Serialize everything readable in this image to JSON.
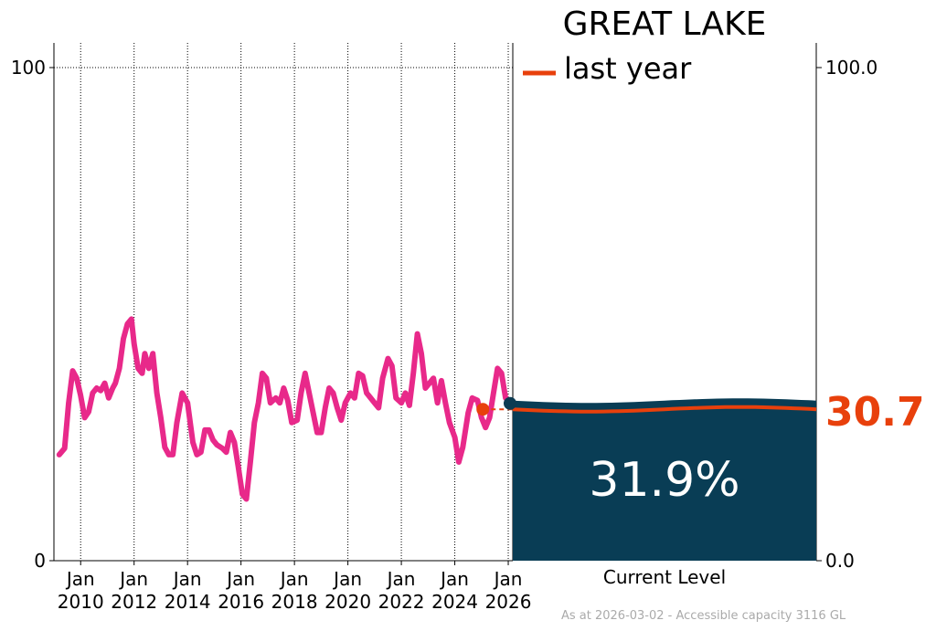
{
  "title": "GREAT LAKE",
  "legend": {
    "label": "last year",
    "color": "#e8400c"
  },
  "current": {
    "percent_label": "31.9%",
    "value": 31.9,
    "caption": "Current Level",
    "fill_color": "#093d55"
  },
  "last_year": {
    "value": 30.7,
    "value_label": "30.7",
    "color": "#e8400c"
  },
  "footer": "As at 2026-03-02 - Accessible capacity 3116 GL",
  "chart_data": {
    "type": "line",
    "title": "GREAT LAKE",
    "xlabel": "",
    "ylabel": "",
    "ylim": [
      0,
      100
    ],
    "left_axis_ticks": [
      "0",
      "100"
    ],
    "right_axis_ticks": [
      "0.0",
      "100.0"
    ],
    "x_tick_labels": [
      {
        "line1": "Jan",
        "line2": "2010",
        "t": 2010
      },
      {
        "line1": "Jan",
        "line2": "2012",
        "t": 2012
      },
      {
        "line1": "Jan",
        "line2": "2014",
        "t": 2014
      },
      {
        "line1": "Jan",
        "line2": "2016",
        "t": 2016
      },
      {
        "line1": "Jan",
        "line2": "2018",
        "t": 2018
      },
      {
        "line1": "Jan",
        "line2": "2020",
        "t": 2020
      },
      {
        "line1": "Jan",
        "line2": "2022",
        "t": 2022
      },
      {
        "line1": "Jan",
        "line2": "2024",
        "t": 2024
      },
      {
        "line1": "Jan",
        "line2": "2026",
        "t": 2026
      }
    ],
    "xlim": [
      2009.0,
      2026.17
    ],
    "grid": "dotted",
    "series": [
      {
        "color": "#e8298a",
        "points": [
          [
            2009.2,
            21.5
          ],
          [
            2009.4,
            22.8
          ],
          [
            2009.55,
            32
          ],
          [
            2009.7,
            38.5
          ],
          [
            2009.85,
            37
          ],
          [
            2010.0,
            33.5
          ],
          [
            2010.15,
            29
          ],
          [
            2010.3,
            30.2
          ],
          [
            2010.45,
            34
          ],
          [
            2010.6,
            35
          ],
          [
            2010.75,
            34.5
          ],
          [
            2010.9,
            36
          ],
          [
            2011.05,
            33
          ],
          [
            2011.2,
            35
          ],
          [
            2011.3,
            36
          ],
          [
            2011.45,
            39
          ],
          [
            2011.6,
            45
          ],
          [
            2011.75,
            48
          ],
          [
            2011.9,
            49
          ],
          [
            2012.0,
            44
          ],
          [
            2012.15,
            39
          ],
          [
            2012.3,
            38
          ],
          [
            2012.4,
            42
          ],
          [
            2012.55,
            39
          ],
          [
            2012.7,
            42
          ],
          [
            2012.85,
            34
          ],
          [
            2013.0,
            29
          ],
          [
            2013.15,
            23
          ],
          [
            2013.3,
            21.5
          ],
          [
            2013.45,
            21.5
          ],
          [
            2013.6,
            28
          ],
          [
            2013.8,
            34
          ],
          [
            2014.0,
            32
          ],
          [
            2014.2,
            24
          ],
          [
            2014.35,
            21.5
          ],
          [
            2014.5,
            22
          ],
          [
            2014.65,
            26.5
          ],
          [
            2014.8,
            26.5
          ],
          [
            2014.95,
            24.5
          ],
          [
            2015.1,
            23.5
          ],
          [
            2015.3,
            22.8
          ],
          [
            2015.45,
            22
          ],
          [
            2015.6,
            26
          ],
          [
            2015.75,
            24
          ],
          [
            2015.9,
            19
          ],
          [
            2016.05,
            13.5
          ],
          [
            2016.2,
            12.5
          ],
          [
            2016.35,
            20
          ],
          [
            2016.5,
            28
          ],
          [
            2016.65,
            32
          ],
          [
            2016.8,
            38
          ],
          [
            2016.95,
            37
          ],
          [
            2017.1,
            32
          ],
          [
            2017.3,
            33
          ],
          [
            2017.45,
            32
          ],
          [
            2017.6,
            35
          ],
          [
            2017.75,
            32.5
          ],
          [
            2017.9,
            28
          ],
          [
            2018.1,
            28.5
          ],
          [
            2018.25,
            34
          ],
          [
            2018.4,
            38
          ],
          [
            2018.55,
            34
          ],
          [
            2018.7,
            30
          ],
          [
            2018.85,
            26
          ],
          [
            2019.0,
            26
          ],
          [
            2019.15,
            31
          ],
          [
            2019.3,
            35
          ],
          [
            2019.45,
            34
          ],
          [
            2019.6,
            31
          ],
          [
            2019.75,
            28.5
          ],
          [
            2019.9,
            32
          ],
          [
            2020.1,
            34
          ],
          [
            2020.25,
            33
          ],
          [
            2020.4,
            38
          ],
          [
            2020.55,
            37.5
          ],
          [
            2020.7,
            34
          ],
          [
            2020.85,
            33
          ],
          [
            2021.0,
            32
          ],
          [
            2021.15,
            31
          ],
          [
            2021.3,
            37
          ],
          [
            2021.5,
            41
          ],
          [
            2021.65,
            39.5
          ],
          [
            2021.8,
            33
          ],
          [
            2022.0,
            32
          ],
          [
            2022.15,
            34
          ],
          [
            2022.3,
            31.5
          ],
          [
            2022.45,
            38
          ],
          [
            2022.6,
            46
          ],
          [
            2022.75,
            42
          ],
          [
            2022.9,
            35
          ],
          [
            2023.05,
            36
          ],
          [
            2023.2,
            37
          ],
          [
            2023.35,
            32
          ],
          [
            2023.5,
            36.5
          ],
          [
            2023.65,
            32
          ],
          [
            2023.8,
            28
          ],
          [
            2024.0,
            25
          ],
          [
            2024.15,
            20
          ],
          [
            2024.3,
            23
          ],
          [
            2024.5,
            30
          ],
          [
            2024.65,
            33
          ],
          [
            2024.85,
            32.5
          ],
          [
            2025.0,
            29
          ],
          [
            2025.15,
            27
          ],
          [
            2025.3,
            29
          ],
          [
            2025.45,
            34
          ],
          [
            2025.6,
            39
          ],
          [
            2025.75,
            38
          ],
          [
            2025.9,
            33
          ],
          [
            2026.1,
            32
          ]
        ]
      }
    ],
    "markers": [
      {
        "t": 2025.05,
        "value": 30.7,
        "color": "#e8400c"
      },
      {
        "t": 2026.15,
        "value": 31.9,
        "color": "#0d3b52"
      }
    ]
  }
}
